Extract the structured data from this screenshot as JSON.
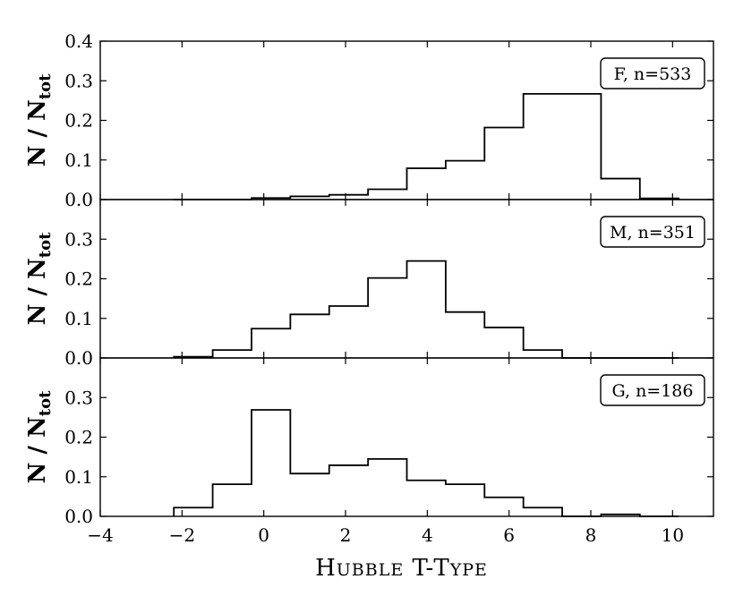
{
  "chart_data": {
    "type": "histogram",
    "shared_x": {
      "label": "Hubble T-type",
      "xlim": [
        -4,
        11
      ],
      "ticks": [
        -4,
        -2,
        0,
        2,
        4,
        6,
        8,
        10
      ],
      "tick_labels": [
        "−4",
        "−2",
        "0",
        "2",
        "4",
        "6",
        "8",
        "10"
      ],
      "bin_edges": [
        -2.2,
        -1.25,
        -0.3,
        0.65,
        1.6,
        2.55,
        3.5,
        4.45,
        5.4,
        6.35,
        7.3,
        8.25,
        9.2,
        10.15
      ]
    },
    "panels": [
      {
        "legend": "F, n=533",
        "ylabel_main": "N / N",
        "ylabel_sub": "tot",
        "ylim": [
          0,
          0.4
        ],
        "yticks": [
          0.0,
          0.1,
          0.2,
          0.3,
          0.4
        ],
        "ytick_labels": [
          "0.0",
          "0.1",
          "0.2",
          "0.3",
          "0.4"
        ],
        "values": [
          0.0,
          0.0,
          0.004,
          0.008,
          0.012,
          0.026,
          0.079,
          0.098,
          0.182,
          0.267,
          0.267,
          0.053,
          0.003
        ]
      },
      {
        "legend": "M, n=351",
        "ylabel_main": "N / N",
        "ylabel_sub": "tot",
        "ylim": [
          0,
          0.4
        ],
        "yticks": [
          0.0,
          0.1,
          0.2,
          0.3
        ],
        "ytick_labels": [
          "0.0",
          "0.1",
          "0.2",
          "0.3"
        ],
        "values": [
          0.003,
          0.02,
          0.074,
          0.11,
          0.131,
          0.202,
          0.245,
          0.116,
          0.077,
          0.02,
          0.0,
          0.0,
          0.0
        ]
      },
      {
        "legend": "G, n=186",
        "ylabel_main": "N / N",
        "ylabel_sub": "tot",
        "ylim": [
          0,
          0.4
        ],
        "yticks": [
          0.0,
          0.1,
          0.2,
          0.3
        ],
        "ytick_labels": [
          "0.0",
          "0.1",
          "0.2",
          "0.3"
        ],
        "values": [
          0.022,
          0.081,
          0.269,
          0.108,
          0.129,
          0.145,
          0.091,
          0.081,
          0.048,
          0.022,
          0.0,
          0.005,
          0.0
        ]
      }
    ]
  }
}
